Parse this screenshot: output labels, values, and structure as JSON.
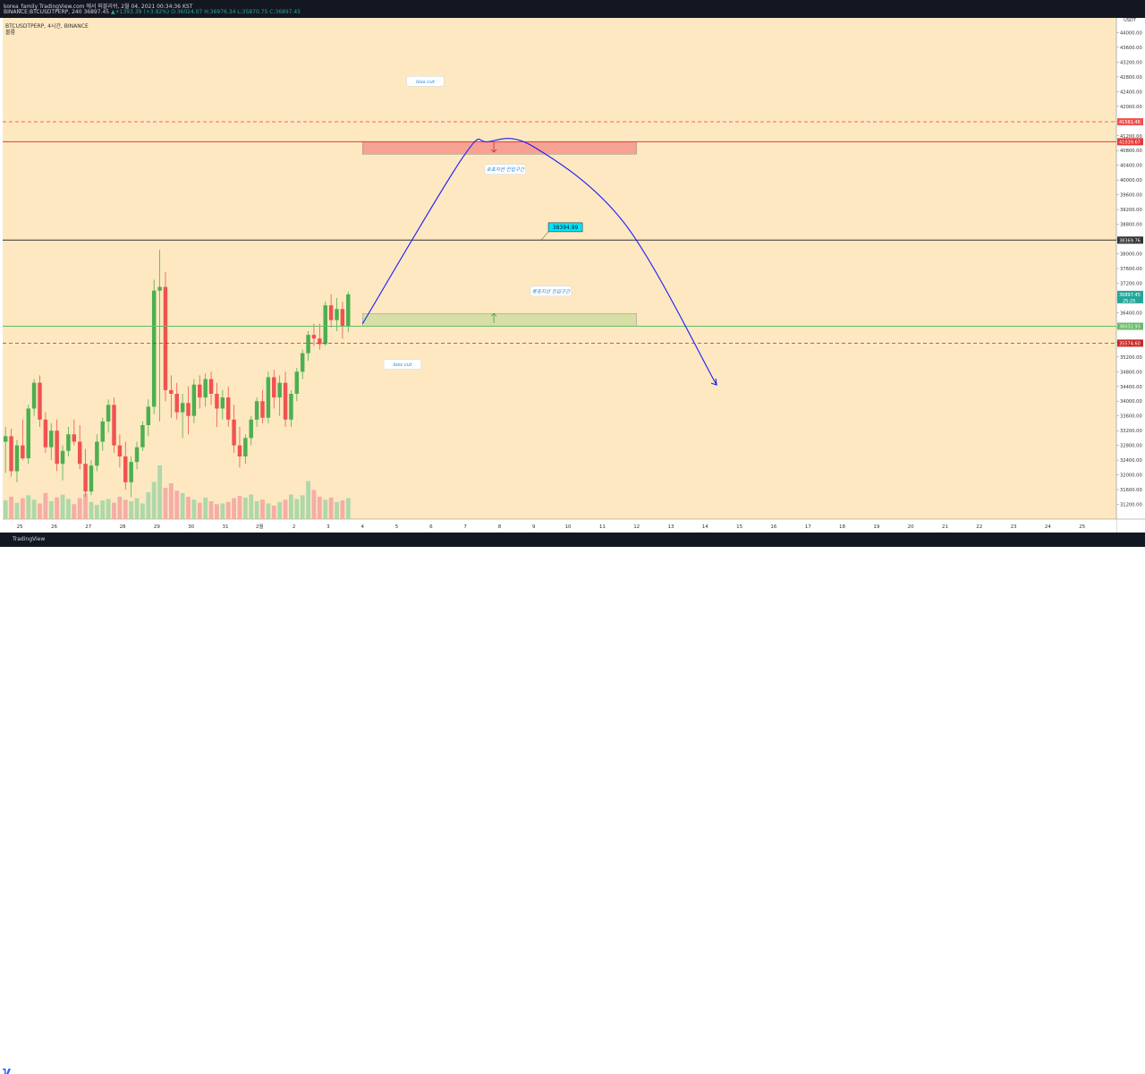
{
  "header": {
    "line1": "korea_family TradingView.com 에서 퍼블리쉬, 2월 04, 2021 00:34:36 KST",
    "line2_prefix": "BINANCE:BTCUSDTPERP, 240 36897.45",
    "line2_change": "▲+1393.39 (+3.92%)",
    "line2_ohlc": "O:36024.07 H:36976.34 L:35870.75 C:36897.45"
  },
  "symbol": {
    "title": "BTCUSDTPERP, 4시간, BINANCE",
    "volume_label": "볼륨"
  },
  "footer": {
    "brand": "TradingView"
  },
  "colors": {
    "background": "#fde8c1",
    "bull": "#4caf50",
    "bear": "#ef5350",
    "curve": "#1a1aff",
    "frame": "#131722"
  },
  "chart_data": {
    "type": "candlestick",
    "currency": "USDT",
    "ylim": [
      30800,
      44400
    ],
    "y_ticks": [
      31200,
      31600,
      32000,
      32400,
      32800,
      33200,
      33600,
      34000,
      34400,
      34800,
      35200,
      35600,
      36000,
      36400,
      36800,
      37200,
      37600,
      38000,
      38400,
      38800,
      39200,
      39600,
      40000,
      40400,
      40800,
      41200,
      41600,
      42000,
      42400,
      42800,
      43200,
      43600,
      44000
    ],
    "y_tick_labels": [
      "31200.00",
      "31600.00",
      "32000.00",
      "32400.00",
      "32800.00",
      "33200.00",
      "33600.00",
      "34000.00",
      "34400.00",
      "34800.00",
      "35200.00",
      "35600.00",
      "36000.00",
      "36400.00",
      "36800.00",
      "37200.00",
      "37600.00",
      "38000.00",
      "38400.00",
      "38800.00",
      "39200.00",
      "39600.00",
      "40000.00",
      "40400.00",
      "40800.00",
      "41200.00",
      "41600.00",
      "42000.00",
      "42400.00",
      "42800.00",
      "43200.00",
      "43600.00",
      "44000.00"
    ],
    "x_start": "2021-01-24T12:00",
    "x_end": "2021-02-26T00:00",
    "x_tick_dates": [
      "2021-01-25",
      "2021-01-26",
      "2021-01-27",
      "2021-01-28",
      "2021-01-29",
      "2021-01-30",
      "2021-01-31",
      "2021-02-01",
      "2021-02-02",
      "2021-02-03",
      "2021-02-04",
      "2021-02-05",
      "2021-02-06",
      "2021-02-07",
      "2021-02-08",
      "2021-02-09",
      "2021-02-10",
      "2021-02-11",
      "2021-02-12",
      "2021-02-13",
      "2021-02-14",
      "2021-02-15",
      "2021-02-16",
      "2021-02-17",
      "2021-02-18",
      "2021-02-19",
      "2021-02-20",
      "2021-02-21",
      "2021-02-22",
      "2021-02-23",
      "2021-02-24",
      "2021-02-25"
    ],
    "x_tick_labels": [
      "25",
      "26",
      "27",
      "28",
      "29",
      "30",
      "31",
      "2월",
      "2",
      "3",
      "4",
      "5",
      "6",
      "7",
      "8",
      "9",
      "10",
      "11",
      "12",
      "13",
      "14",
      "15",
      "16",
      "17",
      "18",
      "19",
      "20",
      "21",
      "22",
      "23",
      "24",
      "25"
    ],
    "candles": [
      [
        32900,
        33300,
        32050,
        33050
      ],
      [
        33050,
        33250,
        31950,
        32100
      ],
      [
        32100,
        32950,
        31800,
        32800
      ],
      [
        32800,
        33500,
        32400,
        32450
      ],
      [
        32450,
        33900,
        32300,
        33800
      ],
      [
        33800,
        34600,
        33600,
        34500
      ],
      [
        34500,
        34700,
        33300,
        33500
      ],
      [
        33500,
        33700,
        32600,
        32750
      ],
      [
        32750,
        33400,
        32400,
        33200
      ],
      [
        33200,
        33500,
        32100,
        32300
      ],
      [
        32300,
        32800,
        31850,
        32650
      ],
      [
        32650,
        33300,
        32500,
        33100
      ],
      [
        33100,
        33500,
        32800,
        32900
      ],
      [
        32900,
        33350,
        32150,
        32300
      ],
      [
        32300,
        32700,
        31400,
        31550
      ],
      [
        31550,
        32400,
        31450,
        32250
      ],
      [
        32250,
        33100,
        32100,
        32900
      ],
      [
        32900,
        33550,
        32650,
        33450
      ],
      [
        33450,
        34050,
        33150,
        33900
      ],
      [
        33900,
        34100,
        32600,
        32800
      ],
      [
        32800,
        33100,
        32200,
        32500
      ],
      [
        32500,
        32900,
        31600,
        31800
      ],
      [
        31800,
        32500,
        31400,
        32350
      ],
      [
        32350,
        32900,
        32150,
        32750
      ],
      [
        32750,
        33450,
        32650,
        33350
      ],
      [
        33350,
        34050,
        33050,
        33850
      ],
      [
        33850,
        37300,
        33650,
        37000
      ],
      [
        37000,
        38100,
        33450,
        37100
      ],
      [
        37100,
        37500,
        34000,
        34300
      ],
      [
        34300,
        34700,
        33550,
        34200
      ],
      [
        34200,
        34500,
        33500,
        33700
      ],
      [
        33700,
        34200,
        33000,
        33950
      ],
      [
        33950,
        34400,
        33100,
        33600
      ],
      [
        33600,
        34600,
        33400,
        34450
      ],
      [
        34450,
        34700,
        33800,
        34100
      ],
      [
        34100,
        34750,
        33850,
        34600
      ],
      [
        34600,
        34800,
        33900,
        34200
      ],
      [
        34200,
        34500,
        33300,
        33800
      ],
      [
        33800,
        34300,
        33500,
        34100
      ],
      [
        34100,
        34400,
        33300,
        33500
      ],
      [
        33500,
        33900,
        32600,
        32800
      ],
      [
        32800,
        33300,
        32200,
        32500
      ],
      [
        32500,
        33100,
        32300,
        33000
      ],
      [
        33000,
        33600,
        32800,
        33500
      ],
      [
        33500,
        34100,
        33300,
        34000
      ],
      [
        34000,
        34300,
        33400,
        33550
      ],
      [
        33550,
        34800,
        33400,
        34650
      ],
      [
        34650,
        34850,
        33800,
        34100
      ],
      [
        34100,
        34700,
        33600,
        34500
      ],
      [
        34500,
        34800,
        33300,
        33500
      ],
      [
        33500,
        34300,
        33300,
        34200
      ],
      [
        34200,
        34900,
        34000,
        34800
      ],
      [
        34800,
        35400,
        34600,
        35300
      ],
      [
        35300,
        35900,
        35100,
        35800
      ],
      [
        35800,
        36100,
        35500,
        35700
      ],
      [
        35700,
        36100,
        35400,
        35550
      ],
      [
        35550,
        36700,
        35500,
        36600
      ],
      [
        36600,
        36900,
        36000,
        36200
      ],
      [
        36200,
        36800,
        35900,
        36500
      ],
      [
        36500,
        36700,
        35700,
        36024.07
      ],
      [
        36024.07,
        36976.34,
        35870.75,
        36897.45
      ]
    ],
    "volume": [
      2.5,
      3.0,
      2.2,
      2.8,
      3.2,
      2.6,
      2.1,
      3.5,
      2.4,
      2.9,
      3.3,
      2.7,
      2.0,
      2.8,
      3.4,
      2.3,
      1.9,
      2.5,
      2.7,
      2.2,
      3.0,
      2.6,
      2.4,
      2.8,
      2.1,
      3.6,
      5.0,
      7.2,
      4.2,
      4.8,
      3.8,
      3.5,
      3.0,
      2.6,
      2.2,
      2.9,
      2.4,
      2.0,
      2.1,
      2.3,
      2.8,
      3.1,
      2.9,
      3.3,
      2.4,
      2.6,
      2.1,
      1.8,
      2.3,
      2.6,
      3.3,
      2.7,
      3.2,
      5.1,
      3.9,
      3.0,
      2.6,
      2.9,
      2.3,
      2.5,
      2.8
    ],
    "horizontal_lines": [
      {
        "price": 41581.46,
        "label": "41581.46",
        "style": "dashed",
        "color": "#ef5350"
      },
      {
        "price": 41039.67,
        "label": "41039.67",
        "style": "solid",
        "color": "#e53935"
      },
      {
        "price": 38369.76,
        "label": "38369.76",
        "style": "solid",
        "color": "#333333"
      },
      {
        "price": 36032.93,
        "label": "36032.93",
        "style": "solid",
        "color": "#66bb6a"
      },
      {
        "price": 35574.6,
        "label": "35574.60",
        "style": "dashed",
        "color": "#c62828"
      }
    ],
    "last_price": {
      "price": 36897.45,
      "label": "36897.45",
      "countdown": "25:25"
    },
    "zones": [
      {
        "from": "2021-02-04T00:00",
        "to": "2021-02-12T00:00",
        "low": 40700,
        "high": 41039.67,
        "color": "#f28b82"
      },
      {
        "from": "2021-02-04T00:00",
        "to": "2021-02-12T00:00",
        "low": 36032.93,
        "high": 36380,
        "color": "#c9dc9c"
      }
    ],
    "annotations": [
      {
        "text": "loss cut",
        "x": "2021-02-05T20:00",
        "y": 42680
      },
      {
        "text": "숏포지션 진입구간",
        "x": "2021-02-08T04:00",
        "y": 40290
      },
      {
        "text": "롱포지션 진입구간",
        "x": "2021-02-09T12:00",
        "y": 36985
      },
      {
        "text": "loss cut",
        "x": "2021-02-05T04:00",
        "y": 35000
      }
    ],
    "price_callout": {
      "text": "38394.99",
      "x": "2021-02-10T00:00",
      "y": 38720
    },
    "projection": [
      [
        "2021-02-04T00:00",
        36100
      ],
      [
        "2021-02-06T22:00",
        40600
      ],
      [
        "2021-02-07T16:00",
        41039.67
      ],
      [
        "2021-02-09T00:00",
        40900
      ],
      [
        "2021-02-11T16:00",
        38800
      ],
      [
        "2021-02-14T08:00",
        34440
      ]
    ]
  }
}
